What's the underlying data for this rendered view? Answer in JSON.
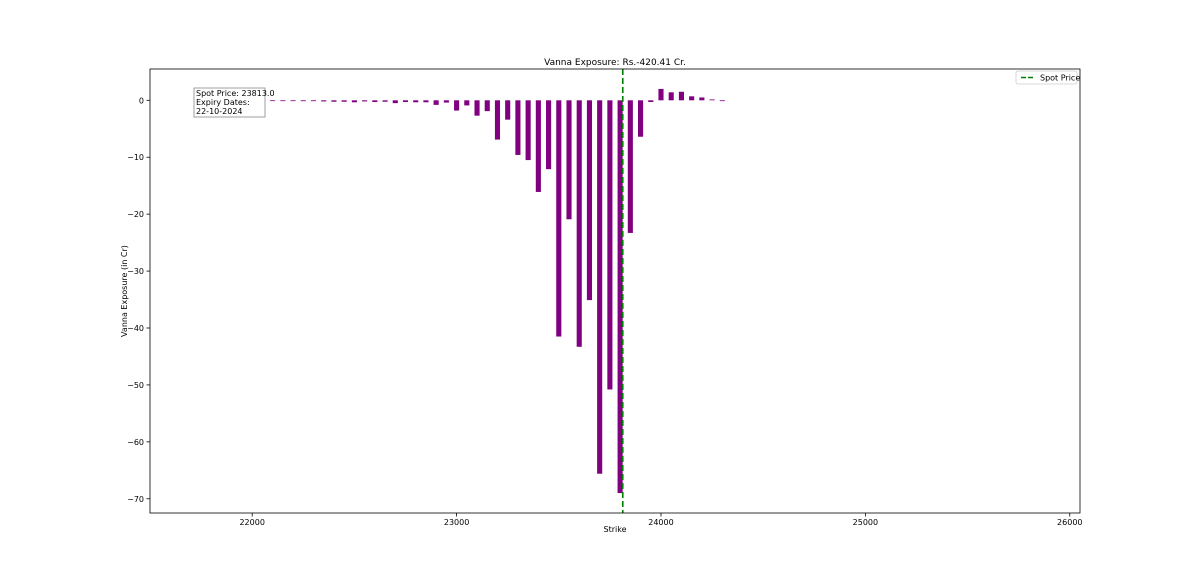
{
  "chart_data": {
    "type": "bar",
    "title": "Vanna Exposure: Rs.-420.41 Cr.",
    "xlabel": "Strike",
    "ylabel": "Vanna Exposure (in Cr)",
    "xlim": [
      21500,
      26050
    ],
    "ylim": [
      -72.5,
      5.5
    ],
    "xticks": [
      22000,
      23000,
      24000,
      25000,
      26000
    ],
    "yticks": [
      0,
      -10,
      -20,
      -30,
      -40,
      -50,
      -60,
      -70
    ],
    "bar_width": 25,
    "bar_color": "#800080",
    "spot_line": {
      "label": "Spot Price",
      "x": 23813.0,
      "color": "#008000",
      "style": "dashed"
    },
    "legend": {
      "entries": [
        "Spot Price"
      ],
      "loc": "upper right"
    },
    "annotation": {
      "lines": [
        "Spot Price: 23813.0",
        "Expiry Dates:",
        "22-10-2024"
      ],
      "loc": "upper left"
    },
    "grid": false,
    "x": [
      21900,
      21950,
      22000,
      22050,
      22100,
      22150,
      22200,
      22250,
      22300,
      22350,
      22400,
      22450,
      22500,
      22550,
      22600,
      22650,
      22700,
      22750,
      22800,
      22850,
      22900,
      22950,
      23000,
      23050,
      23100,
      23150,
      23200,
      23250,
      23300,
      23350,
      23400,
      23450,
      23500,
      23550,
      23600,
      23650,
      23700,
      23750,
      23800,
      23850,
      23900,
      23950,
      24000,
      24050,
      24100,
      24150,
      24200,
      24250,
      24300
    ],
    "values": [
      -0.05,
      -0.05,
      -0.05,
      -0.05,
      -0.08,
      -0.1,
      -0.1,
      -0.15,
      -0.15,
      -0.2,
      -0.25,
      -0.25,
      -0.35,
      -0.2,
      -0.3,
      -0.25,
      -0.5,
      -0.3,
      -0.35,
      -0.35,
      -0.8,
      -0.4,
      -1.8,
      -0.9,
      -2.7,
      -1.9,
      -6.9,
      -3.4,
      -9.6,
      -10.5,
      -16.1,
      -12.1,
      -41.5,
      -20.9,
      -43.3,
      -35.1,
      -65.6,
      -50.8,
      -69.0,
      -23.3,
      -6.4,
      -0.3,
      2.0,
      1.4,
      1.5,
      0.7,
      0.5,
      0.15,
      -0.05
    ]
  }
}
